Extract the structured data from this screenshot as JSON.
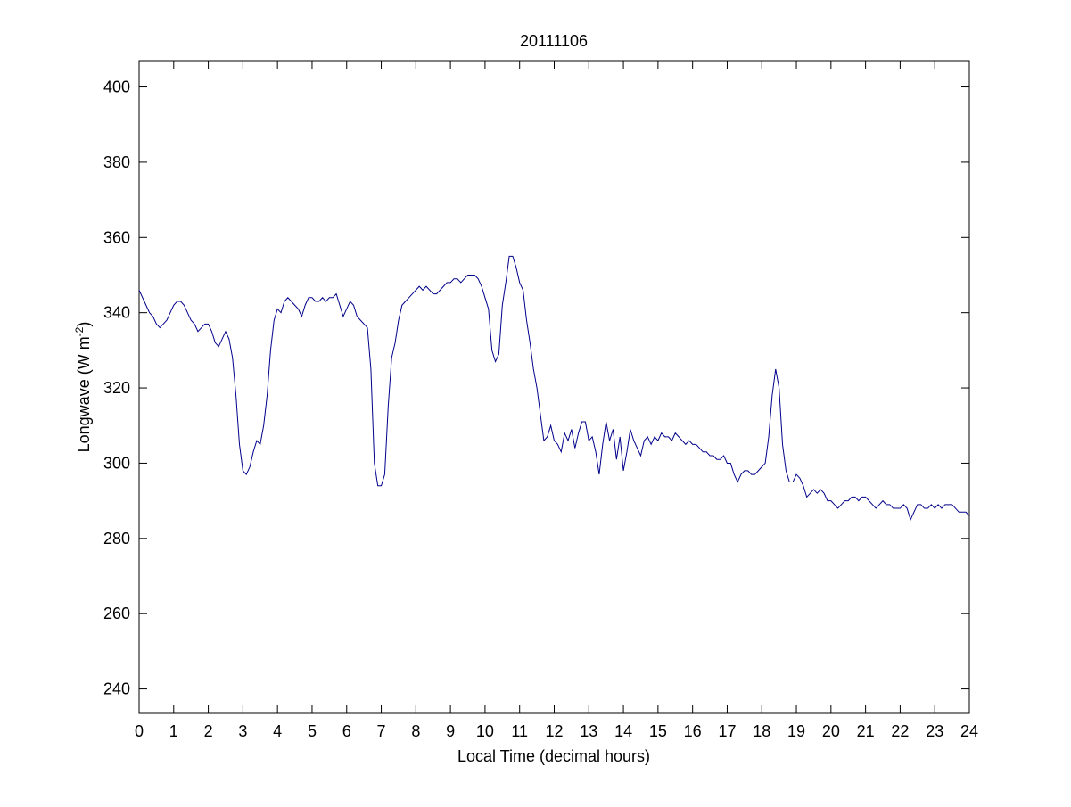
{
  "chart_data": {
    "type": "line",
    "title": "20111106",
    "x_label": "Local Time (decimal hours)",
    "y_label": [
      "Longwave (W m",
      "-2",
      ")"
    ],
    "color": "#00008b",
    "xlim": [
      0,
      24
    ],
    "xticks": [
      0,
      1,
      2,
      3,
      4,
      5,
      6,
      7,
      8,
      9,
      10,
      11,
      12,
      13,
      14,
      15,
      16,
      17,
      18,
      19,
      20,
      21,
      22,
      23,
      24
    ],
    "ylim": [
      233.5,
      407
    ],
    "yticks": [
      240,
      260,
      280,
      300,
      320,
      340,
      360,
      380,
      400
    ],
    "box": true,
    "tick_direction": "in",
    "x": [
      0,
      0.1,
      0.2,
      0.3,
      0.4,
      0.5,
      0.6,
      0.7,
      0.8,
      0.9,
      1,
      1.1,
      1.2,
      1.3,
      1.4,
      1.5,
      1.6,
      1.7,
      1.8,
      1.9,
      2,
      2.1,
      2.2,
      2.3,
      2.4,
      2.5,
      2.6,
      2.7,
      2.8,
      2.9,
      3,
      3.1,
      3.2,
      3.3,
      3.4,
      3.5,
      3.6,
      3.7,
      3.8,
      3.9,
      4,
      4.1,
      4.2,
      4.3,
      4.4,
      4.5,
      4.6,
      4.7,
      4.8,
      4.9,
      5,
      5.1,
      5.2,
      5.3,
      5.4,
      5.5,
      5.6,
      5.7,
      5.8,
      5.9,
      6,
      6.1,
      6.2,
      6.3,
      6.4,
      6.5,
      6.6,
      6.7,
      6.8,
      6.9,
      7,
      7.1,
      7.2,
      7.3,
      7.4,
      7.5,
      7.6,
      7.7,
      7.8,
      7.9,
      8,
      8.1,
      8.2,
      8.3,
      8.4,
      8.5,
      8.6,
      8.7,
      8.8,
      8.9,
      9,
      9.1,
      9.2,
      9.3,
      9.4,
      9.5,
      9.6,
      9.7,
      9.8,
      9.9,
      10,
      10.1,
      10.2,
      10.3,
      10.4,
      10.5,
      10.6,
      10.7,
      10.8,
      10.9,
      11,
      11.1,
      11.2,
      11.3,
      11.4,
      11.5,
      11.6,
      11.7,
      11.8,
      11.9,
      12,
      12.1,
      12.2,
      12.3,
      12.4,
      12.5,
      12.6,
      12.7,
      12.8,
      12.9,
      13,
      13.1,
      13.2,
      13.3,
      13.4,
      13.5,
      13.6,
      13.7,
      13.8,
      13.9,
      14,
      14.1,
      14.2,
      14.3,
      14.4,
      14.5,
      14.6,
      14.7,
      14.8,
      14.9,
      15,
      15.1,
      15.2,
      15.3,
      15.4,
      15.5,
      15.6,
      15.7,
      15.8,
      15.9,
      16,
      16.1,
      16.2,
      16.3,
      16.4,
      16.5,
      16.6,
      16.7,
      16.8,
      16.9,
      17,
      17.1,
      17.2,
      17.3,
      17.4,
      17.5,
      17.6,
      17.7,
      17.8,
      17.9,
      18,
      18.1,
      18.2,
      18.3,
      18.4,
      18.5,
      18.6,
      18.7,
      18.8,
      18.9,
      19,
      19.1,
      19.2,
      19.3,
      19.4,
      19.5,
      19.6,
      19.7,
      19.8,
      19.9,
      20,
      20.1,
      20.2,
      20.3,
      20.4,
      20.5,
      20.6,
      20.7,
      20.8,
      20.9,
      21,
      21.1,
      21.2,
      21.3,
      21.4,
      21.5,
      21.6,
      21.7,
      21.8,
      21.9,
      22,
      22.1,
      22.2,
      22.3,
      22.4,
      22.5,
      22.6,
      22.7,
      22.8,
      22.9,
      23,
      23.1,
      23.2,
      23.3,
      23.4,
      23.5,
      23.6,
      23.7,
      23.8,
      23.9,
      24
    ],
    "values": [
      346,
      344,
      342,
      340,
      339,
      337,
      336,
      337,
      338,
      340,
      342,
      343,
      343,
      342,
      340,
      338,
      337,
      335,
      336,
      337,
      337,
      335,
      332,
      331,
      333,
      335,
      333,
      328,
      318,
      305,
      298,
      297,
      299,
      303,
      306,
      305,
      310,
      318,
      330,
      338,
      341,
      340,
      343,
      344,
      343,
      342,
      341,
      339,
      342,
      344,
      344,
      343,
      343,
      344,
      343,
      344,
      344,
      345,
      342,
      339,
      341,
      343,
      342,
      339,
      338,
      337,
      336,
      325,
      300,
      294,
      294,
      297,
      315,
      328,
      332,
      338,
      342,
      343,
      344,
      345,
      346,
      347,
      346,
      347,
      346,
      345,
      345,
      346,
      347,
      348,
      348,
      349,
      349,
      348,
      349,
      350,
      350,
      350,
      349,
      347,
      344,
      341,
      330,
      327,
      329,
      342,
      348,
      355,
      355,
      352,
      348,
      346,
      338,
      332,
      325,
      320,
      313,
      306,
      307,
      310,
      306,
      305,
      303,
      308,
      306,
      309,
      304,
      308,
      311,
      311,
      306,
      307,
      303,
      297,
      305,
      311,
      306,
      309,
      301,
      307,
      298,
      303,
      309,
      306,
      304,
      302,
      306,
      307,
      305,
      307,
      306,
      308,
      307,
      307,
      306,
      308,
      307,
      306,
      305,
      306,
      305,
      305,
      304,
      303,
      303,
      302,
      302,
      301,
      301,
      302,
      300,
      300,
      297,
      295,
      297,
      298,
      298,
      297,
      297,
      298,
      299,
      300,
      307,
      318,
      325,
      320,
      305,
      298,
      295,
      295,
      297,
      296,
      294,
      291,
      292,
      293,
      292,
      293,
      292,
      290,
      290,
      289,
      288,
      289,
      290,
      290,
      291,
      291,
      290,
      291,
      291,
      290,
      289,
      288,
      289,
      290,
      289,
      289,
      288,
      288,
      288,
      289,
      288,
      285,
      287,
      289,
      289,
      288,
      288,
      289,
      288,
      289,
      288,
      289,
      289,
      289,
      288,
      287,
      287,
      287,
      286
    ]
  }
}
